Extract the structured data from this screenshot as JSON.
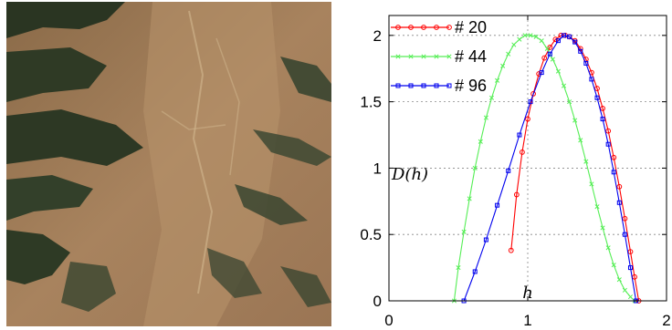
{
  "image": {
    "description_icon": "satellite-terrain-image"
  },
  "chart_data": {
    "type": "line",
    "title": "",
    "xlabel": "h",
    "ylabel": "D(h)",
    "xlim": [
      0,
      2
    ],
    "ylim": [
      0,
      2.15
    ],
    "xticks": [
      "0",
      "1",
      "2"
    ],
    "yticks": [
      "0",
      "0.5",
      "1",
      "1.5",
      "2"
    ],
    "grid": true,
    "legend_position": "top-left",
    "series": [
      {
        "name": "# 20",
        "color": "#ff0000",
        "marker": "circle",
        "x": [
          0.88,
          0.92,
          0.96,
          1.0,
          1.04,
          1.08,
          1.12,
          1.16,
          1.2,
          1.24,
          1.27,
          1.3,
          1.34,
          1.38,
          1.42,
          1.46,
          1.5,
          1.54,
          1.58,
          1.62,
          1.66,
          1.7,
          1.74,
          1.77,
          1.8
        ],
        "y": [
          0.38,
          0.8,
          1.12,
          1.37,
          1.56,
          1.71,
          1.83,
          1.91,
          1.97,
          2.0,
          2.0,
          1.99,
          1.96,
          1.9,
          1.82,
          1.72,
          1.6,
          1.45,
          1.28,
          1.08,
          0.86,
          0.62,
          0.37,
          0.18,
          0.0
        ]
      },
      {
        "name": "# 44",
        "color": "#55ee55",
        "marker": "x",
        "x": [
          0.47,
          0.5,
          0.54,
          0.58,
          0.62,
          0.66,
          0.7,
          0.74,
          0.78,
          0.82,
          0.86,
          0.9,
          0.94,
          0.98,
          1.02,
          1.06,
          1.1,
          1.14,
          1.18,
          1.22,
          1.26,
          1.3,
          1.34,
          1.38,
          1.42,
          1.46,
          1.5,
          1.54,
          1.58,
          1.62,
          1.66,
          1.7,
          1.74,
          1.77
        ],
        "y": [
          0.0,
          0.25,
          0.52,
          0.77,
          1.0,
          1.2,
          1.38,
          1.53,
          1.66,
          1.77,
          1.86,
          1.93,
          1.97,
          2.0,
          2.0,
          1.99,
          1.96,
          1.9,
          1.82,
          1.73,
          1.62,
          1.5,
          1.36,
          1.21,
          1.05,
          0.88,
          0.71,
          0.55,
          0.4,
          0.27,
          0.16,
          0.08,
          0.03,
          0.0
        ]
      },
      {
        "name": "# 96",
        "color": "#0000ee",
        "marker": "square",
        "x": [
          0.54,
          0.62,
          0.7,
          0.78,
          0.86,
          0.94,
          1.02,
          1.1,
          1.16,
          1.22,
          1.26,
          1.3,
          1.34,
          1.38,
          1.42,
          1.46,
          1.5,
          1.54,
          1.58,
          1.62,
          1.66,
          1.7,
          1.74,
          1.78
        ],
        "y": [
          0.0,
          0.22,
          0.46,
          0.72,
          0.98,
          1.25,
          1.5,
          1.72,
          1.86,
          1.96,
          2.0,
          1.99,
          1.95,
          1.88,
          1.79,
          1.67,
          1.53,
          1.37,
          1.18,
          0.97,
          0.74,
          0.5,
          0.25,
          0.0
        ]
      }
    ]
  }
}
